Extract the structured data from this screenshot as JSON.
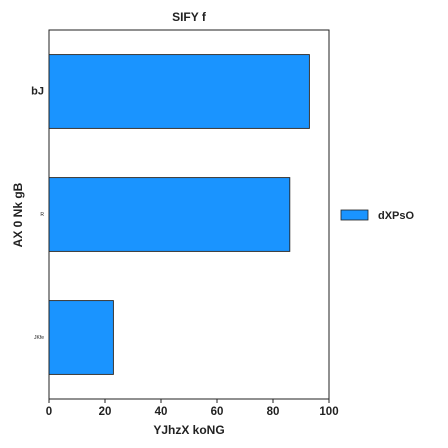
{
  "chart_data": {
    "type": "bar",
    "orientation": "horizontal",
    "title": "SIFY f",
    "xlabel": "YJhzX koNG",
    "ylabel": "AX 0 Nk gB",
    "categories": [
      "bJ",
      "R",
      "JKfe"
    ],
    "series": [
      {
        "name": "dXPsO",
        "values": [
          93,
          86,
          23
        ],
        "color": "#1a94ff"
      }
    ],
    "xlim": [
      0,
      100
    ],
    "xticks": [
      0,
      20,
      40,
      60,
      80,
      100
    ],
    "grid": false,
    "legend": "right"
  }
}
